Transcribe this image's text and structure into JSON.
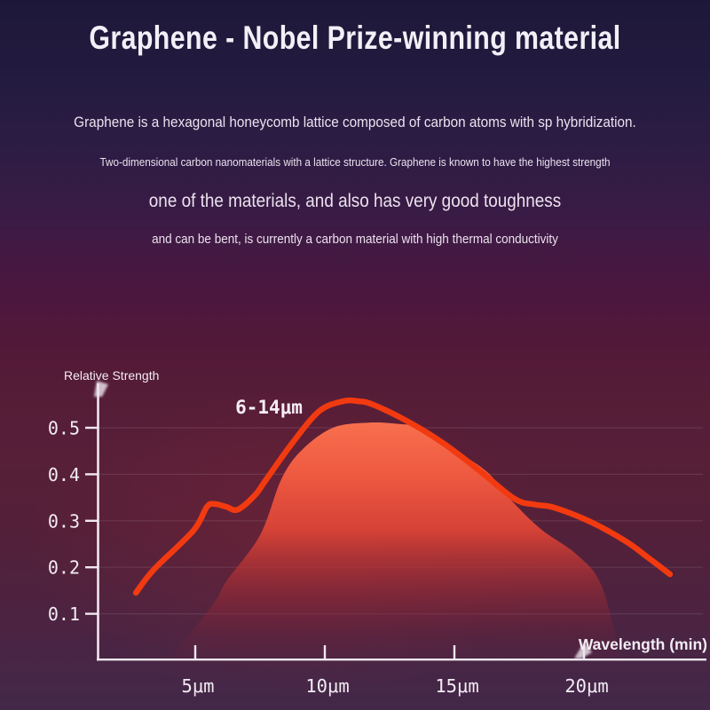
{
  "header": {
    "title": "Graphene - Nobel Prize-winning material"
  },
  "intro": {
    "line1": "Graphene is a hexagonal honeycomb lattice composed of carbon atoms with sp hybridization.",
    "line2": "Two-dimensional carbon nanomaterials with a lattice structure. Graphene is known to have the highest strength",
    "line3": "one of the materials, and also has very good toughness",
    "line4": "and can be bent, is currently a carbon material with high thermal conductivity"
  },
  "chart_data": {
    "type": "area",
    "title": "",
    "ylabel": "Relative Strength",
    "xlabel": "Wavelength (min)",
    "annotation": "6-14μm",
    "x_ticks": [
      5,
      10,
      15,
      20
    ],
    "x_tick_labels": [
      "5μm",
      "10μm",
      "15μm",
      "20μm"
    ],
    "y_ticks": [
      0.1,
      0.2,
      0.3,
      0.4,
      0.5
    ],
    "y_tick_labels": [
      "0.1",
      "0.2",
      "0.3",
      "0.4",
      "0.5"
    ],
    "xlim": [
      1.5,
      24.5
    ],
    "ylim": [
      0,
      0.6
    ],
    "grid": "faint horizontal gridlines at each y tick",
    "legend": "none",
    "series": [
      {
        "name": "relative strength curve",
        "type": "line",
        "color": "#f23a10",
        "points": [
          [
            2.71,
            0.145
          ],
          [
            3.4,
            0.195
          ],
          [
            4.93,
            0.279
          ],
          [
            5.45,
            0.33
          ],
          [
            5.75,
            0.336
          ],
          [
            6.2,
            0.33
          ],
          [
            6.64,
            0.324
          ],
          [
            7.3,
            0.355
          ],
          [
            7.74,
            0.389
          ],
          [
            8.77,
            0.469
          ],
          [
            9.79,
            0.536
          ],
          [
            10.7,
            0.557
          ],
          [
            11.3,
            0.557
          ],
          [
            11.85,
            0.55
          ],
          [
            13.22,
            0.513
          ],
          [
            14.59,
            0.466
          ],
          [
            15.96,
            0.408
          ],
          [
            17.33,
            0.347
          ],
          [
            18.1,
            0.335
          ],
          [
            18.87,
            0.328
          ],
          [
            20.24,
            0.298
          ],
          [
            21.61,
            0.256
          ],
          [
            22.47,
            0.221
          ],
          [
            23.32,
            0.185
          ]
        ]
      },
      {
        "name": "strength band (shaded mountain)",
        "type": "area",
        "color_top": "#f8724f",
        "color_bottom": "rgba(120,30,50,0.05)",
        "points": [
          [
            3.97,
            0.0
          ],
          [
            5.68,
            0.12
          ],
          [
            6.2,
            0.17
          ],
          [
            7.5,
            0.269
          ],
          [
            8.32,
            0.389
          ],
          [
            9.11,
            0.452
          ],
          [
            10.31,
            0.5
          ],
          [
            11.68,
            0.511
          ],
          [
            12.88,
            0.508
          ],
          [
            13.8,
            0.498
          ],
          [
            15.17,
            0.447
          ],
          [
            16.3,
            0.403
          ],
          [
            17.23,
            0.342
          ],
          [
            18.36,
            0.281
          ],
          [
            19.73,
            0.227
          ],
          [
            20.68,
            0.16
          ],
          [
            21.44,
            0.0
          ]
        ]
      }
    ],
    "colors": {
      "axis": "#f1e8f1",
      "grid": "rgba(255,255,255,0.10)",
      "line": "#f23a10",
      "area_top": "#f8724f",
      "area_mid": "#d64236",
      "background_top": "#1d1839",
      "background_chart": "#561d37",
      "background_bottom": "#432849",
      "text": "#ece2ef"
    }
  }
}
